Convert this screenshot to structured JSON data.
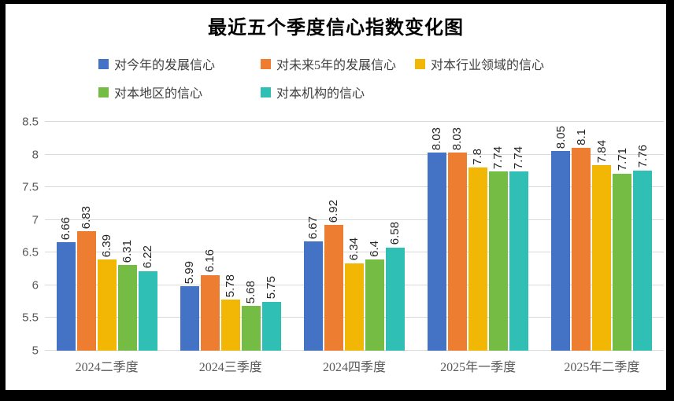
{
  "chart_data": {
    "type": "bar",
    "title": "最近五个季度信心指数变化图",
    "categories": [
      "2024二季度",
      "2024三季度",
      "2024四季度",
      "2025年一季度",
      "2025年二季度"
    ],
    "series": [
      {
        "name": "对今年的发展信心",
        "color": "#4472C4",
        "values": [
          6.66,
          5.99,
          6.67,
          8.03,
          8.05
        ]
      },
      {
        "name": "对未来5年的发展信心",
        "color": "#ED7D31",
        "values": [
          6.83,
          6.16,
          6.92,
          8.03,
          8.1
        ]
      },
      {
        "name": "对本行业领域的信心",
        "color": "#F2B705",
        "values": [
          6.39,
          5.78,
          6.34,
          7.8,
          7.84
        ]
      },
      {
        "name": "对本地区的信心",
        "color": "#74BC44",
        "values": [
          6.31,
          5.68,
          6.4,
          7.74,
          7.71
        ]
      },
      {
        "name": "对本机构的信心",
        "color": "#2FBFB4",
        "values": [
          6.22,
          5.75,
          6.58,
          7.74,
          7.76
        ]
      }
    ],
    "ylim": [
      5,
      8.5
    ],
    "ytick_step": 0.5,
    "grid": true,
    "legend_position": "top-left-two-rows",
    "data_labels": "rotated-vertical",
    "xlabel": "",
    "ylabel": ""
  },
  "frame": {
    "border_color": "#000000",
    "background": "#ffffff"
  },
  "colors": {
    "gridline": "#d9d9d9",
    "axis_text": "#595959",
    "data_label": "#262626",
    "legend_text": "#404040",
    "title_text": "#000000"
  }
}
